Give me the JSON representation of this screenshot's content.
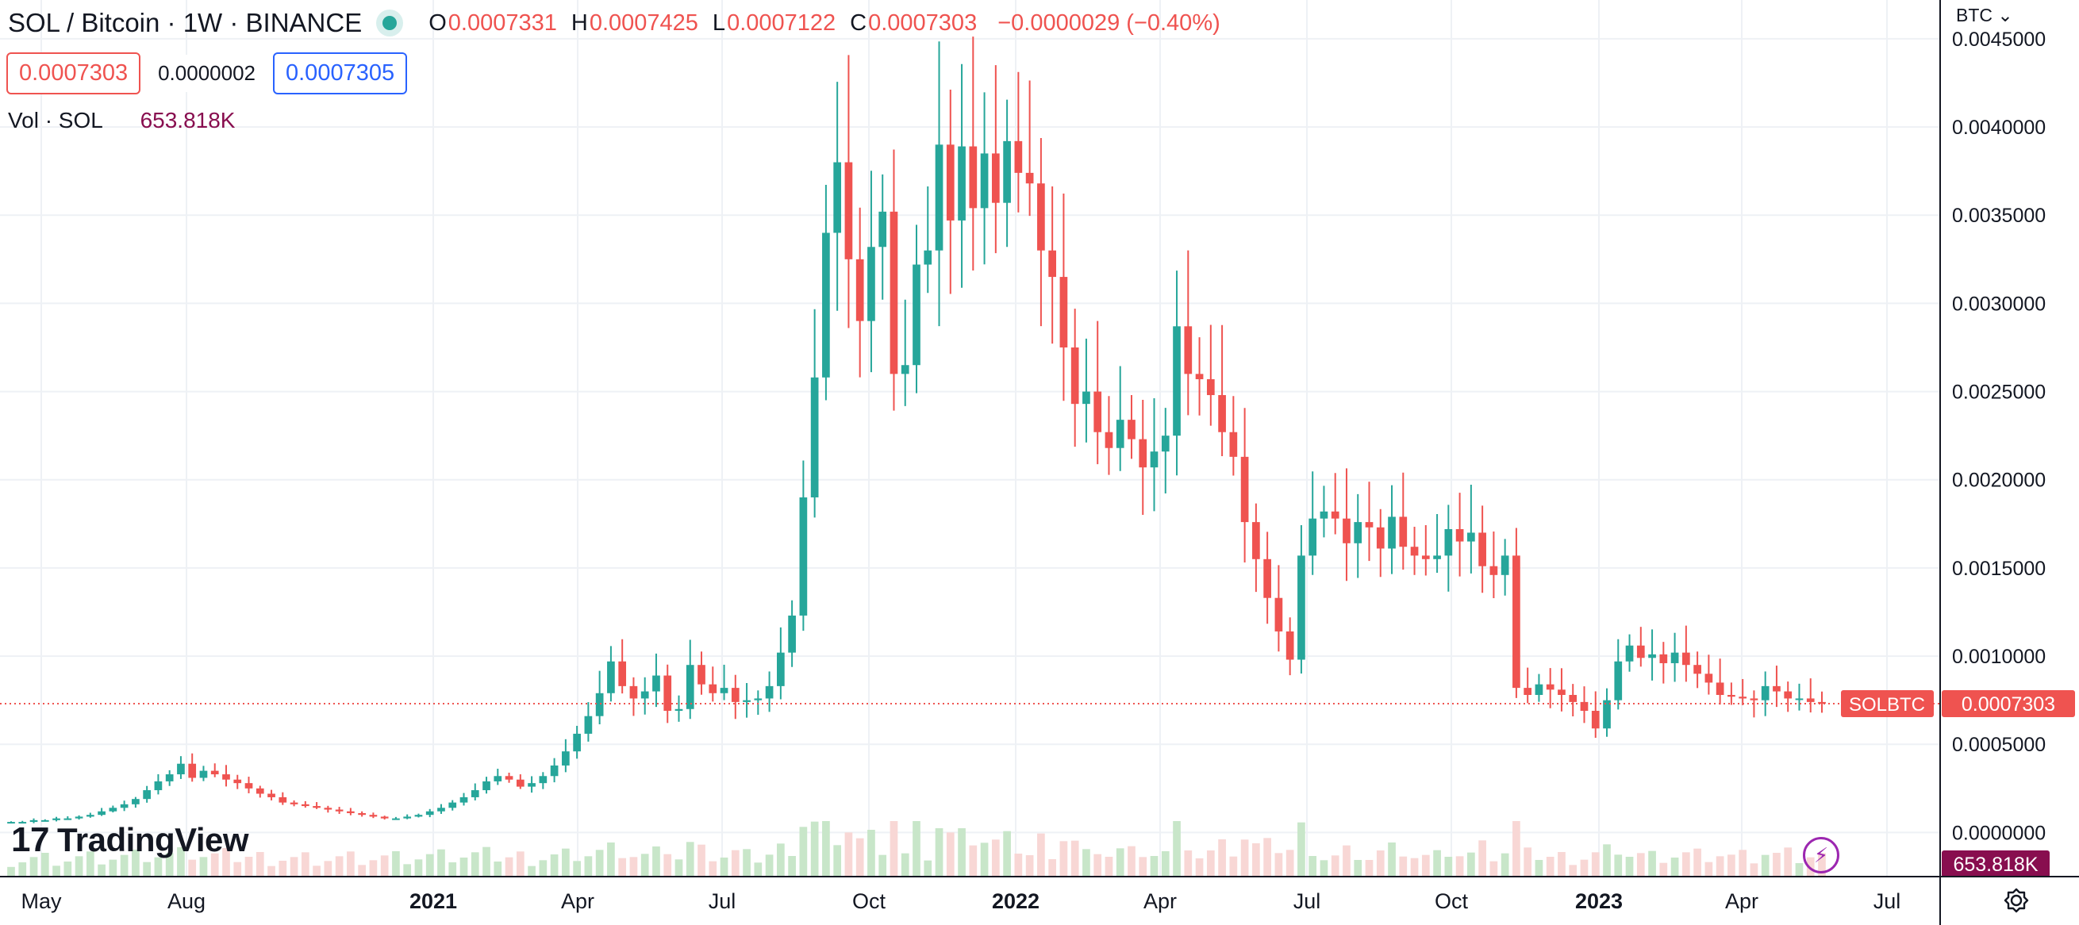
{
  "header": {
    "symbol_title": "SOL / Bitcoin · 1W · BINANCE",
    "status_color": "#26a69a",
    "ohlc": {
      "open_label": "O",
      "open": "0.0007331",
      "high_label": "H",
      "high": "0.0007425",
      "low_label": "L",
      "low": "0.0007122",
      "close_label": "C",
      "close": "0.0007303",
      "change": "−0.0000029 (−0.40%)"
    }
  },
  "quote": {
    "bid": "0.0007303",
    "spread": "0.0000002",
    "ask": "0.0007305"
  },
  "volume_legend": {
    "label": "Vol · SOL",
    "value": "653.818K"
  },
  "currency_menu": {
    "label": "BTC",
    "icon": "chevron-down-icon"
  },
  "branding": {
    "logo_text": "TradingView",
    "logo_mark": "17"
  },
  "colors": {
    "up": "#26a69a",
    "down": "#ef5350",
    "grid": "#eef1f5",
    "axis_text": "#131722",
    "volume_up": "#c8e6c9",
    "volume_down": "#f8d7d5"
  },
  "chart_data": {
    "type": "candlestick",
    "symbol": "SOLBTC",
    "interval": "1W",
    "y_axis": {
      "min": -0.00025,
      "max": 0.00472,
      "ticks": [
        "0.0045000",
        "0.0040000",
        "0.0035000",
        "0.0030000",
        "0.0025000",
        "0.0020000",
        "0.0015000",
        "0.0010000",
        "0.0005000",
        "0.0000000"
      ],
      "tick_values": [
        0.0045,
        0.004,
        0.0035,
        0.003,
        0.0025,
        0.002,
        0.0015,
        0.001,
        0.0005,
        0.0
      ]
    },
    "x_axis": {
      "labels": [
        "May",
        "Aug",
        "2021",
        "Apr",
        "Jul",
        "Oct",
        "2022",
        "Apr",
        "Jul",
        "Oct",
        "2023",
        "Apr",
        "Jul"
      ],
      "bold_labels": [
        "2021",
        "2022",
        "2023"
      ]
    },
    "last_price": {
      "label": "SOLBTC",
      "value": "0.0007303",
      "price": 0.0007303
    },
    "volume_last_label": "653.818K",
    "grid": true,
    "weekly_closes": [
      6e-05,
      6e-05,
      7e-05,
      7e-05,
      8e-05,
      8e-05,
      9e-05,
      0.0001,
      0.00012,
      0.00014,
      0.00016,
      0.00019,
      0.00024,
      0.00029,
      0.00033,
      0.00039,
      0.00031,
      0.00035,
      0.00033,
      0.0003,
      0.00028,
      0.00025,
      0.00022,
      0.0002,
      0.00017,
      0.00016,
      0.00015,
      0.00014,
      0.00013,
      0.00012,
      0.00011,
      0.0001,
      9e-05,
      8e-05,
      8e-05,
      9e-05,
      0.0001,
      0.00012,
      0.00014,
      0.00017,
      0.0002,
      0.00024,
      0.00029,
      0.00032,
      0.0003,
      0.00026,
      0.00028,
      0.00032,
      0.00038,
      0.00046,
      0.00056,
      0.00066,
      0.00079,
      0.00097,
      0.00083,
      0.00076,
      0.0008,
      0.00089,
      0.00069,
      0.0007,
      0.00095,
      0.00084,
      0.00079,
      0.00082,
      0.00074,
      0.00075,
      0.00076,
      0.00083,
      0.00102,
      0.00123,
      0.0019,
      0.00258,
      0.0034,
      0.0038,
      0.00325,
      0.0029,
      0.00332,
      0.00352,
      0.0026,
      0.00265,
      0.00322,
      0.0033,
      0.0039,
      0.00347,
      0.00389,
      0.00354,
      0.00385,
      0.00357,
      0.00392,
      0.00374,
      0.00368,
      0.0033,
      0.00315,
      0.00275,
      0.00243,
      0.0025,
      0.00227,
      0.00218,
      0.00234,
      0.00223,
      0.00207,
      0.00216,
      0.00225,
      0.00287,
      0.0026,
      0.00257,
      0.00248,
      0.00227,
      0.00213,
      0.00176,
      0.00155,
      0.00133,
      0.00114,
      0.00098,
      0.00157,
      0.00178,
      0.00182,
      0.00178,
      0.00164,
      0.00176,
      0.00173,
      0.00161,
      0.00179,
      0.00162,
      0.00157,
      0.00155,
      0.00157,
      0.00172,
      0.00165,
      0.0017,
      0.00151,
      0.00146,
      0.00157,
      0.00082,
      0.00078,
      0.00084,
      0.00081,
      0.00078,
      0.00074,
      0.00069,
      0.00059,
      0.00075,
      0.00097,
      0.00106,
      0.00099,
      0.00101,
      0.00096,
      0.00102,
      0.00095,
      0.0009,
      0.00085,
      0.00078,
      0.00077,
      0.00076,
      0.00075,
      0.00083,
      0.0008,
      0.00076,
      0.00076,
      0.00074,
      0.0007303
    ]
  }
}
